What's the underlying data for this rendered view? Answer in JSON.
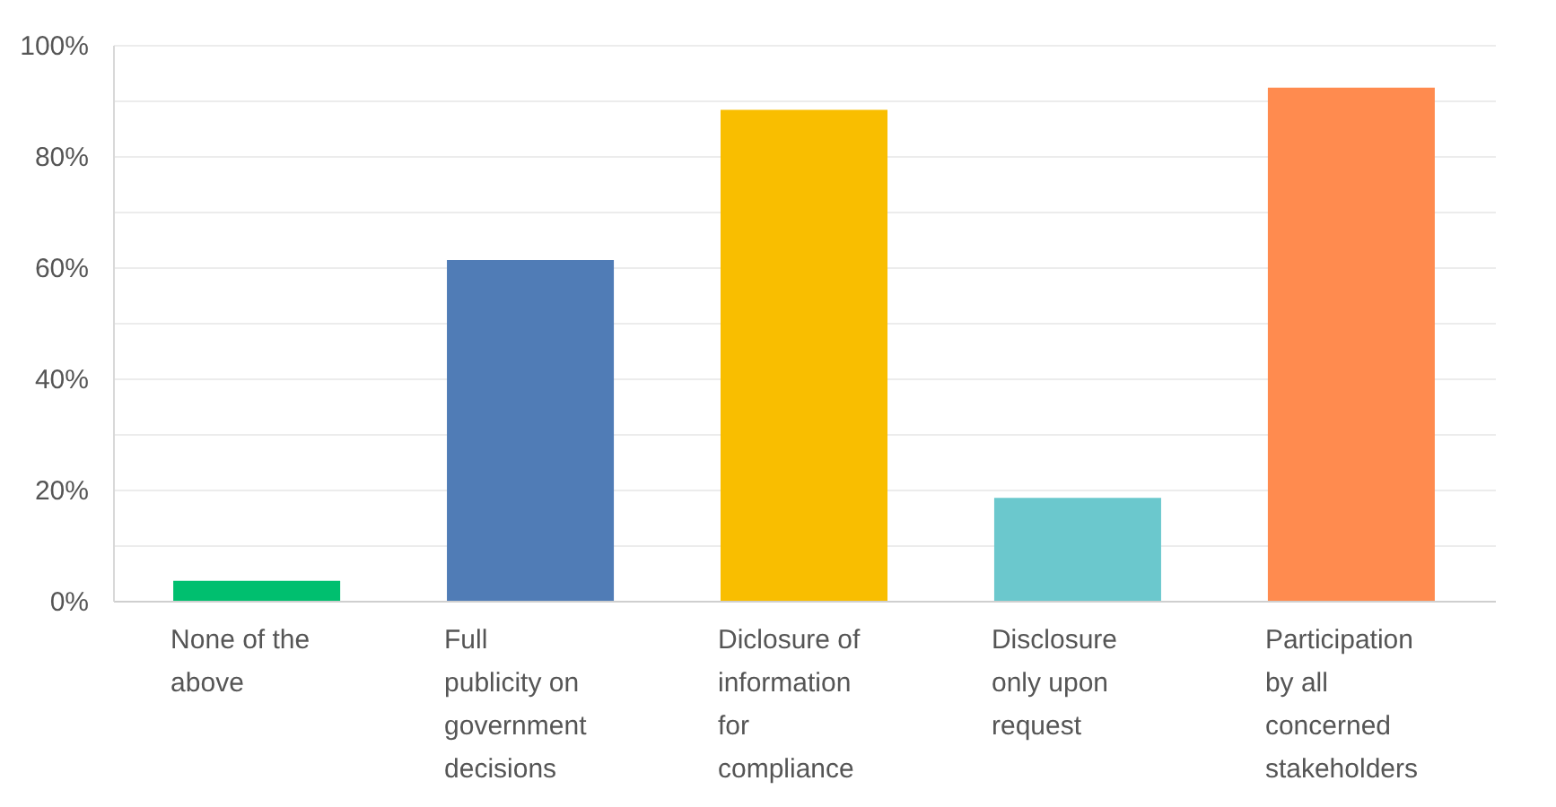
{
  "chart_data": {
    "type": "bar",
    "categories": [
      "None of the above",
      "Full publicity on government decisions",
      "Diclosure of information for compliance",
      "Disclosure only upon request",
      "Participation by all concerned stakeholders"
    ],
    "values": [
      3.6,
      61.3,
      88.3,
      18.5,
      92.3
    ],
    "colors": [
      "#00bf6f",
      "#507cb6",
      "#f9be00",
      "#6bc8cd",
      "#ff8b4f"
    ],
    "ylim": [
      0,
      100
    ],
    "yticks": [
      {
        "value": 0,
        "label": "0%"
      },
      {
        "value": 10,
        "label": null
      },
      {
        "value": 20,
        "label": "20%"
      },
      {
        "value": 30,
        "label": null
      },
      {
        "value": 40,
        "label": "40%"
      },
      {
        "value": 50,
        "label": null
      },
      {
        "value": 60,
        "label": "60%"
      },
      {
        "value": 70,
        "label": null
      },
      {
        "value": 80,
        "label": "80%"
      },
      {
        "value": 90,
        "label": null
      },
      {
        "value": 100,
        "label": "100%"
      }
    ],
    "grid": "y"
  }
}
